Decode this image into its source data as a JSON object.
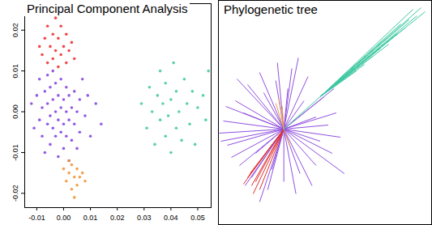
{
  "chart_data": [
    {
      "type": "scatter",
      "title": "Principal Component Analysis",
      "marker": "dot",
      "xlim": [
        -0.0145,
        0.055
      ],
      "ylim": [
        -0.0235,
        0.0265
      ],
      "xticks": [
        -0.01,
        {
          "value": 0,
          "label": "0.00"
        },
        0.01,
        0.02,
        0.03,
        0.04,
        0.05
      ],
      "yticks": [
        -0.02,
        -0.01,
        {
          "value": 0,
          "label": "0.00"
        },
        0.01,
        0.02
      ],
      "series": [
        {
          "color": "#8040e0",
          "x": [
            -0.01,
            -0.009,
            -0.009,
            -0.008,
            -0.008,
            -0.007,
            -0.007,
            -0.006,
            -0.006,
            -0.006,
            -0.005,
            -0.005,
            -0.005,
            -0.004,
            -0.004,
            -0.004,
            -0.003,
            -0.003,
            -0.003,
            -0.002,
            -0.002,
            -0.002,
            -0.001,
            -0.001,
            -0.001,
            0.0,
            0.0,
            0.0,
            0.001,
            0.001,
            0.001,
            0.002,
            0.002,
            0.002,
            0.003,
            0.003,
            0.004,
            0.004,
            0.005,
            0.005,
            0.006,
            0.006,
            0.007,
            0.008,
            0.009,
            0.01,
            0.012,
            0.014,
            -0.011,
            -0.012
          ],
          "y": [
            0.004,
            -0.002,
            0.008,
            0.001,
            -0.006,
            0.005,
            -0.01,
            0.002,
            -0.003,
            0.009,
            -0.001,
            0.006,
            -0.008,
            0.003,
            -0.004,
            0.01,
            0.0,
            -0.006,
            0.007,
            -0.002,
            0.004,
            -0.011,
            0.001,
            -0.005,
            0.008,
            -0.003,
            0.003,
            -0.009,
            0.0,
            0.006,
            -0.006,
            -0.002,
            0.004,
            -0.012,
            0.001,
            -0.007,
            0.005,
            -0.003,
            0.0,
            -0.009,
            0.003,
            -0.005,
            0.008,
            -0.001,
            0.004,
            -0.006,
            0.002,
            -0.003,
            -0.004,
            0.002
          ]
        },
        {
          "color": "#ee2a2a",
          "x": [
            -0.008,
            -0.007,
            -0.006,
            -0.006,
            -0.005,
            -0.004,
            -0.004,
            -0.003,
            -0.003,
            -0.002,
            -0.002,
            -0.001,
            -0.001,
            0.0,
            0.0,
            0.001,
            0.001,
            0.002,
            0.003,
            0.004,
            -0.009,
            -0.005
          ],
          "y": [
            0.014,
            0.018,
            0.012,
            0.021,
            0.016,
            0.013,
            0.019,
            0.023,
            0.015,
            0.011,
            0.018,
            0.014,
            0.021,
            0.016,
            0.025,
            0.012,
            0.019,
            0.015,
            0.017,
            0.013,
            0.016,
            0.024
          ]
        },
        {
          "color": "#f0902a",
          "x": [
            0.0,
            0.001,
            0.002,
            0.003,
            0.003,
            0.004,
            0.005,
            0.005,
            0.006,
            0.007,
            0.008,
            0.002,
            0.004
          ],
          "y": [
            -0.014,
            -0.017,
            -0.015,
            -0.019,
            -0.013,
            -0.016,
            -0.018,
            -0.014,
            -0.016,
            -0.015,
            -0.017,
            -0.012,
            -0.021
          ]
        },
        {
          "color": "#3cc8a0",
          "x": [
            0.029,
            0.031,
            0.032,
            0.033,
            0.034,
            0.035,
            0.036,
            0.036,
            0.037,
            0.038,
            0.038,
            0.039,
            0.04,
            0.04,
            0.041,
            0.042,
            0.042,
            0.043,
            0.044,
            0.045,
            0.046,
            0.047,
            0.048,
            0.049,
            0.05,
            0.052,
            0.053,
            0.054
          ],
          "y": [
            0.002,
            -0.004,
            0.006,
            0.0,
            -0.008,
            0.004,
            -0.002,
            0.01,
            0.002,
            -0.006,
            0.007,
            -0.001,
            0.003,
            -0.01,
            0.012,
            -0.004,
            0.005,
            0.0,
            -0.007,
            0.008,
            0.002,
            -0.003,
            0.005,
            -0.008,
            0.001,
            0.004,
            -0.002,
            0.01
          ]
        }
      ]
    },
    {
      "type": "tree",
      "title": "Phylogenetic tree",
      "tick_labels": false,
      "xlim": [
        -80,
        183
      ],
      "ylim": [
        -118,
        158
      ],
      "series": [
        {
          "color": "#9050e0",
          "origin": [
            0,
            0
          ],
          "x": [
            -75,
            -70,
            -60,
            -55,
            -45,
            -40,
            -30,
            -20,
            -10,
            0,
            10,
            20,
            30,
            40,
            50,
            60,
            65,
            70,
            55,
            -80,
            -65,
            -50,
            -35,
            -25,
            -15,
            5,
            15,
            25,
            35,
            45,
            -72,
            -48,
            -8,
            62,
            18,
            -78,
            75,
            -30,
            40,
            -58
          ],
          "y": [
            10,
            -20,
            35,
            -45,
            55,
            -60,
            70,
            -75,
            60,
            -65,
            75,
            -55,
            65,
            -45,
            40,
            -30,
            20,
            -10,
            5,
            -5,
            -35,
            20,
            -30,
            45,
            -50,
            50,
            -80,
            35,
            -70,
            -15,
            28,
            -70,
            82,
            50,
            88,
            -15,
            -55,
            -90,
            15,
            62
          ]
        },
        {
          "color": "#e03030",
          "origin": [
            0,
            0
          ],
          "x": [
            -45,
            -40,
            -35,
            -30,
            -42,
            -50,
            -38
          ],
          "y": [
            -60,
            -70,
            -65,
            -75,
            -55,
            -68,
            -80
          ]
        },
        {
          "color": "#e8a050",
          "origin": [
            0,
            0
          ],
          "x": [
            -10,
            -6,
            -2,
            8
          ],
          "y": [
            32,
            38,
            28,
            -22
          ]
        },
        {
          "color": "#3cc8a0",
          "origin": [
            0,
            0
          ],
          "x": [
            45
          ],
          "y": [
            40
          ]
        },
        {
          "color": "#3cc8a0",
          "origin": [
            45,
            40
          ],
          "x": [
            170,
            165,
            160,
            150,
            140,
            130,
            120,
            110,
            100,
            175,
            155,
            145,
            125,
            90
          ],
          "y": [
            150,
            140,
            148,
            125,
            118,
            105,
            100,
            90,
            80,
            145,
            135,
            130,
            112,
            72
          ]
        }
      ]
    }
  ]
}
